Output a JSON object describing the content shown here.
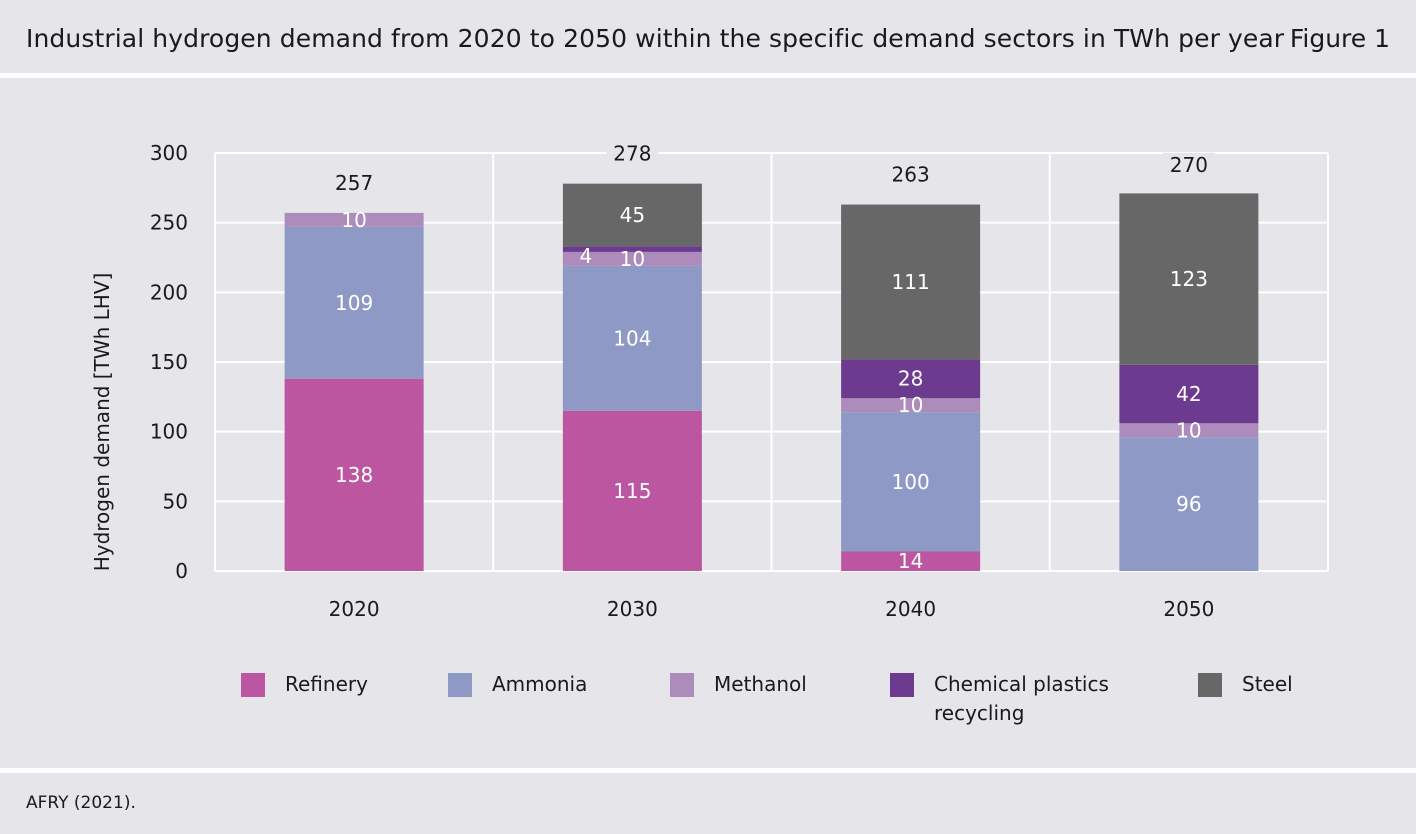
{
  "header": {
    "title": "Industrial hydrogen demand from 2020 to 2050 within the specific demand sectors in TWh per year",
    "figure_label": "Figure 1"
  },
  "footer": {
    "source": "AFRY (2021)."
  },
  "colors": {
    "Refinery": "#bd56a0",
    "Ammonia": "#8f99c6",
    "Methanol": "#ad8cbc",
    "Chemical plastics recycling": "#6c3a8e",
    "Steel": "#676767",
    "gridline": "#ffffff",
    "text": "#1a1a1a"
  },
  "chart_data": {
    "type": "bar",
    "stacked": true,
    "categories": [
      "2020",
      "2030",
      "2040",
      "2050"
    ],
    "series": [
      {
        "name": "Refinery",
        "values": [
          138,
          115,
          14,
          0
        ]
      },
      {
        "name": "Ammonia",
        "values": [
          109,
          104,
          100,
          96
        ]
      },
      {
        "name": "Methanol",
        "values": [
          10,
          10,
          10,
          10
        ]
      },
      {
        "name": "Chemical plastics recycling",
        "values": [
          0,
          4,
          28,
          42
        ]
      },
      {
        "name": "Steel",
        "values": [
          0,
          45,
          111,
          123
        ]
      }
    ],
    "totals": [
      257,
      278,
      263,
      270
    ],
    "ylabel": "Hydrogen demand [TWh LHV]",
    "xlabel": "",
    "ylim": [
      0,
      300
    ],
    "yticks": [
      0,
      50,
      100,
      150,
      200,
      250,
      300
    ],
    "grid": true,
    "legend_position": "bottom"
  },
  "legend": [
    {
      "label": "Refinery",
      "color": "#bd56a0"
    },
    {
      "label": "Ammonia",
      "color": "#8f99c6"
    },
    {
      "label": "Methanol",
      "color": "#ad8cbc"
    },
    {
      "label": "Chemical plastics recycling",
      "color": "#6c3a8e"
    },
    {
      "label": "Steel",
      "color": "#676767"
    }
  ]
}
